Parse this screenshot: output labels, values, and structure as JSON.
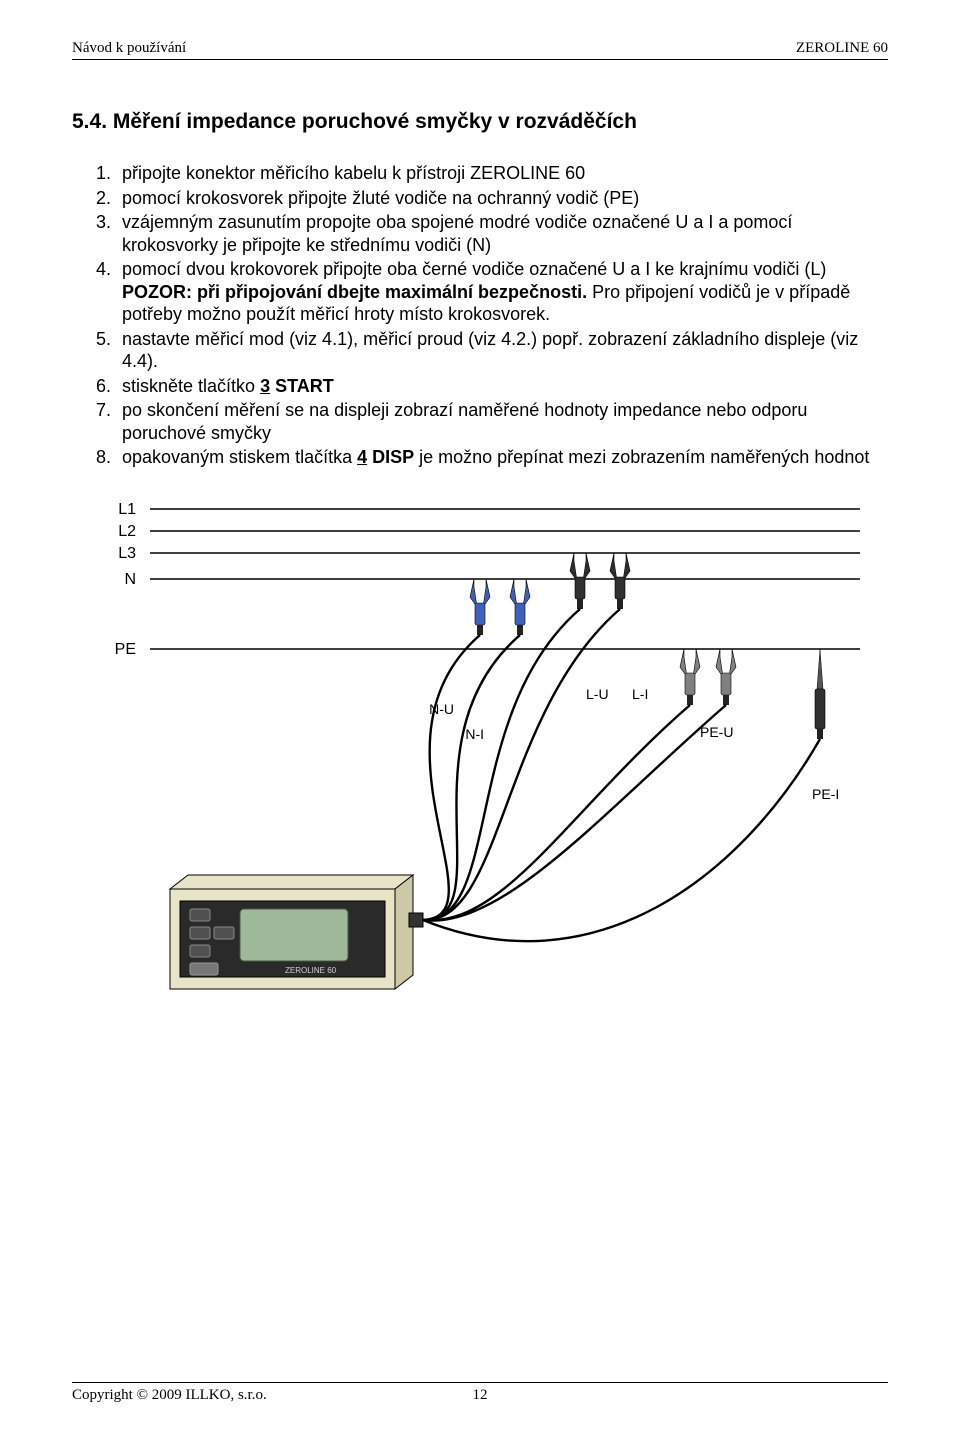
{
  "header": {
    "left": "Návod k používání",
    "right": "ZEROLINE 60"
  },
  "section_title": "5.4. Měření impedance poruchové smyčky v rozváděčích",
  "steps": {
    "s1": "připojte konektor měřicího kabelu k přístroji ZEROLINE 60",
    "s2": "pomocí krokosvorek připojte žluté vodiče na ochranný vodič (PE)",
    "s3": "vzájemným zasunutím propojte oba spojené modré vodiče označené U a I a pomocí krokosvorky je připojte ke střednímu vodiči (N)",
    "s4_a": "pomocí dvou krokovorek připojte oba černé vodiče označené U a I ke krajnímu vodiči (L)",
    "s4_b": "POZOR: při připojování dbejte maximální bezpečnosti.",
    "s4_c": " Pro připojení vodičů je v případě potřeby možno použít měřicí hroty místo krokosvorek.",
    "s5": "nastavte měřicí mod (viz 4.1), měřicí proud (viz 4.2.) popř. zobrazení základního displeje (viz 4.4).",
    "s6_a": "stiskněte tlačítko ",
    "s6_b": "3",
    "s6_c": " START",
    "s7": "po skončení měření se na displeji zobrazí naměřené hodnoty impedance nebo odporu poruchové smyčky",
    "s8_a": "opakovaným stiskem tlačítka ",
    "s8_b": "4",
    "s8_c": " DISP",
    "s8_d": " je možno přepínat mezi zobrazením naměřených hodnot"
  },
  "diagram": {
    "labels": {
      "L1": "L1",
      "L2": "L2",
      "L3": "L3",
      "N": "N",
      "PE": "PE",
      "NU": "N-U",
      "NI": "N-I",
      "LU": "L-U",
      "LI": "L-I",
      "PEU": "PE-U",
      "PEI": "PE-I",
      "device": "ZEROLINE 60"
    },
    "colors": {
      "line": "#000000",
      "cable": "#000000",
      "clip_yellow": "#f0d030",
      "clip_blue": "#4060c0",
      "clip_black": "#303030",
      "clip_grey": "#808080",
      "device_body": "#e8e4c8",
      "device_panel": "#2a2a2a",
      "device_screen": "#9fb89a",
      "device_btn": "#505050",
      "label_font": "14",
      "line_label_font": "16"
    }
  },
  "footer": {
    "left": "Copyright © 2009 ILLKO, s.r.o.",
    "pagenum": "12"
  }
}
